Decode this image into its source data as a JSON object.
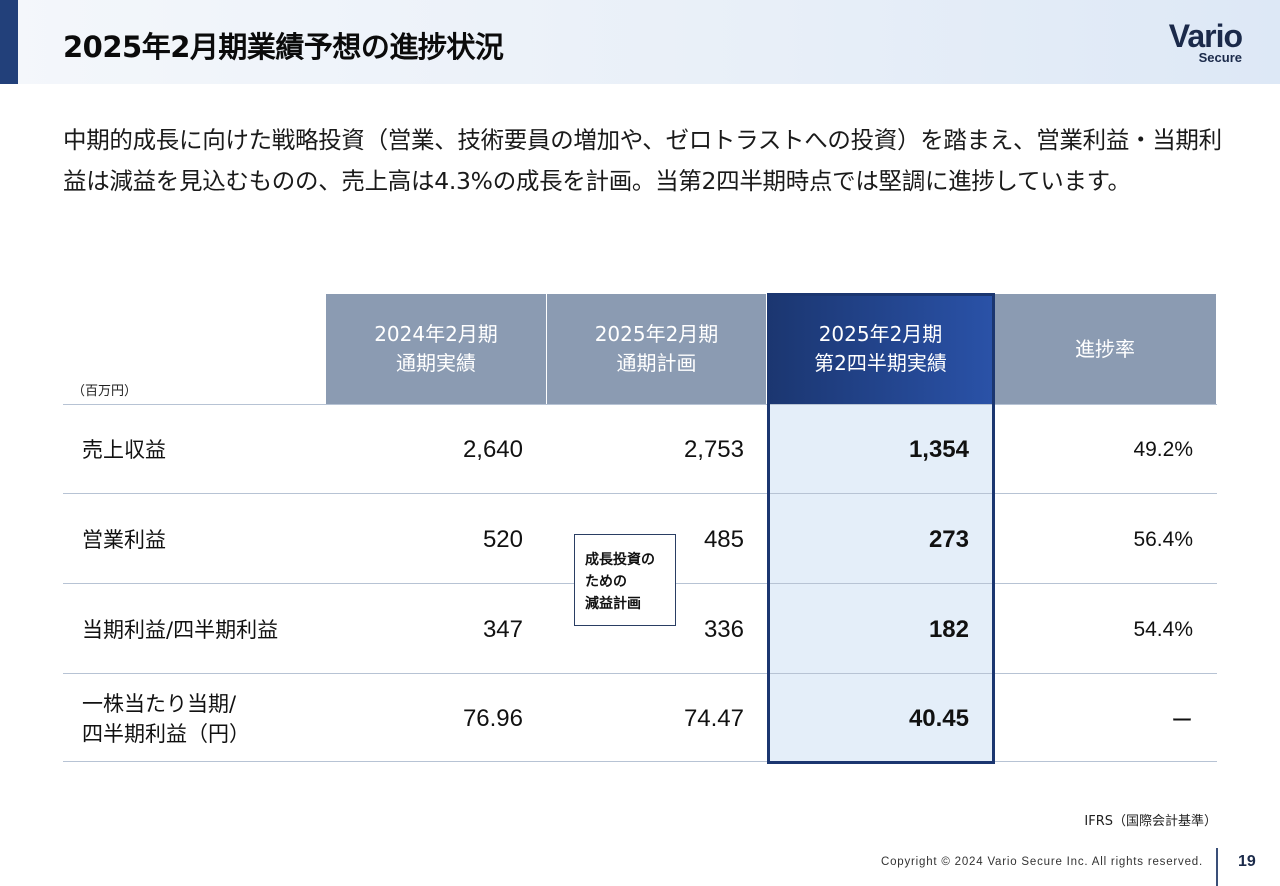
{
  "header": {
    "title": "2025年2月期業績予想の進捗状況",
    "logo_main": "Vario",
    "logo_sub": "Secure"
  },
  "intro": "中期的成長に向けた戦略投資（営業、技術要員の増加や、ゼロトラストへの投資）を踏まえ、営業利益・当期利益は減益を見込むものの、売上高は4.3%の成長を計画。当第2四半期時点では堅調に進捗しています。",
  "table": {
    "unit": "（百万円）",
    "columns": [
      {
        "line1": "2024年2月期",
        "line2": "通期実績"
      },
      {
        "line1": "2025年2月期",
        "line2": "通期計画"
      },
      {
        "line1": "2025年2月期",
        "line2": "第2四半期実績"
      },
      {
        "line1": "進捗率",
        "line2": ""
      }
    ],
    "rows": [
      {
        "label": "売上収益",
        "fy2024": "2,640",
        "plan2025": "2,753",
        "q2_2025": "1,354",
        "progress": "49.2%"
      },
      {
        "label": "営業利益",
        "fy2024": "520",
        "plan2025": "485",
        "q2_2025": "273",
        "progress": "56.4%"
      },
      {
        "label": "当期利益/四半期利益",
        "fy2024": "347",
        "plan2025": "336",
        "q2_2025": "182",
        "progress": "54.4%"
      },
      {
        "label": "一株当たり当期/\n四半期利益（円）",
        "fy2024": "76.96",
        "plan2025": "74.47",
        "q2_2025": "40.45",
        "progress": "ー"
      }
    ],
    "callout": [
      "成長投資の",
      "ための",
      "減益計画"
    ]
  },
  "footnote": "IFRS（国際会計基準）",
  "footer": {
    "copyright": "Copyright © 2024 Vario Secure Inc. All rights reserved.",
    "page": "19"
  },
  "colors": {
    "header_accent": "#22407a",
    "column_header": "#8b9bb2",
    "highlight_header": "#1b3670",
    "highlight_body": "#e4eef9"
  }
}
